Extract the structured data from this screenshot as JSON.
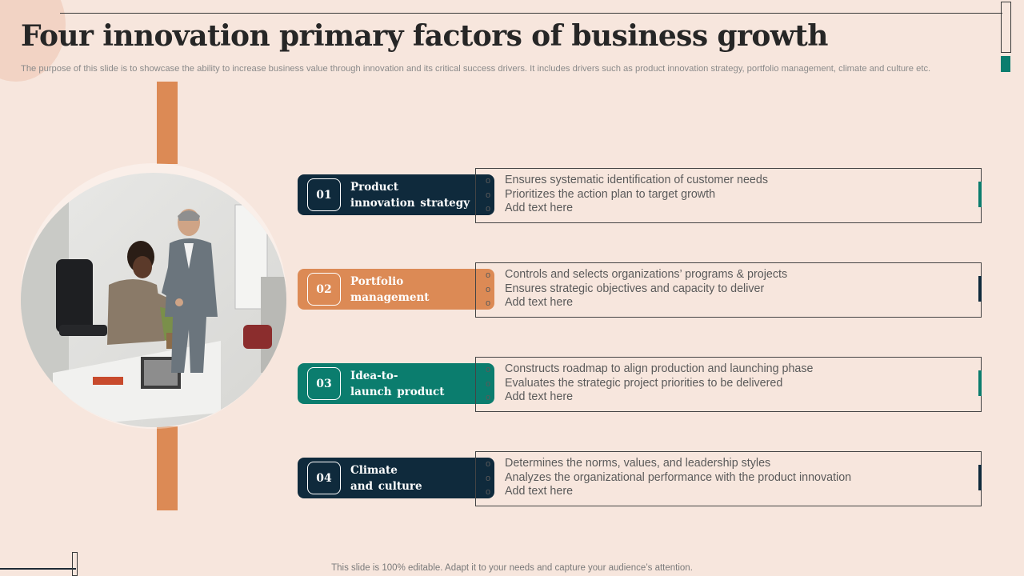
{
  "slide": {
    "title": "Four innovation primary factors of business growth",
    "subtitle": "The purpose of this slide is to showcase the ability to increase business value through innovation and its critical success drivers. It includes drivers such as product innovation strategy, portfolio management, climate and culture etc.",
    "footer": "This slide is 100% editable. Adapt it to your needs and capture your audience’s attention."
  },
  "colors": {
    "background": "#f7e6dd",
    "navy": "#0f2a3c",
    "orange": "#dc8a55",
    "teal": "#0b7d6e"
  },
  "factors": [
    {
      "number": "01",
      "label": "Product\ninnovation  strategy",
      "color": "#0f2a3c",
      "accent": "#0b7d6e",
      "bullets": [
        "Ensures systematic identification of customer needs",
        "Prioritizes the action plan to target growth",
        "Add text here"
      ]
    },
    {
      "number": "02",
      "label": "Portfolio\nmanagement",
      "color": "#dc8a55",
      "accent": "#0f2a3c",
      "bullets": [
        "Controls and selects organizations’ programs & projects",
        "Ensures strategic objectives and capacity to deliver",
        "Add text here"
      ]
    },
    {
      "number": "03",
      "label": "Idea-to-\nlaunch  product",
      "color": "#0b7d6e",
      "accent": "#0b7d6e",
      "bullets": [
        "Constructs roadmap to align production and launching phase",
        "Evaluates the strategic project priorities to be delivered",
        "Add text here"
      ]
    },
    {
      "number": "04",
      "label": "Climate\nand  culture",
      "color": "#0f2a3c",
      "accent": "#0f2a3c",
      "bullets": [
        "Determines the norms, values, and leadership styles",
        "Analyzes the organizational performance with the product innovation",
        "Add text here"
      ]
    }
  ],
  "icons": {
    "bullet": "hollow-circle-bullet-icon",
    "photo": "business-handshake-photo"
  }
}
